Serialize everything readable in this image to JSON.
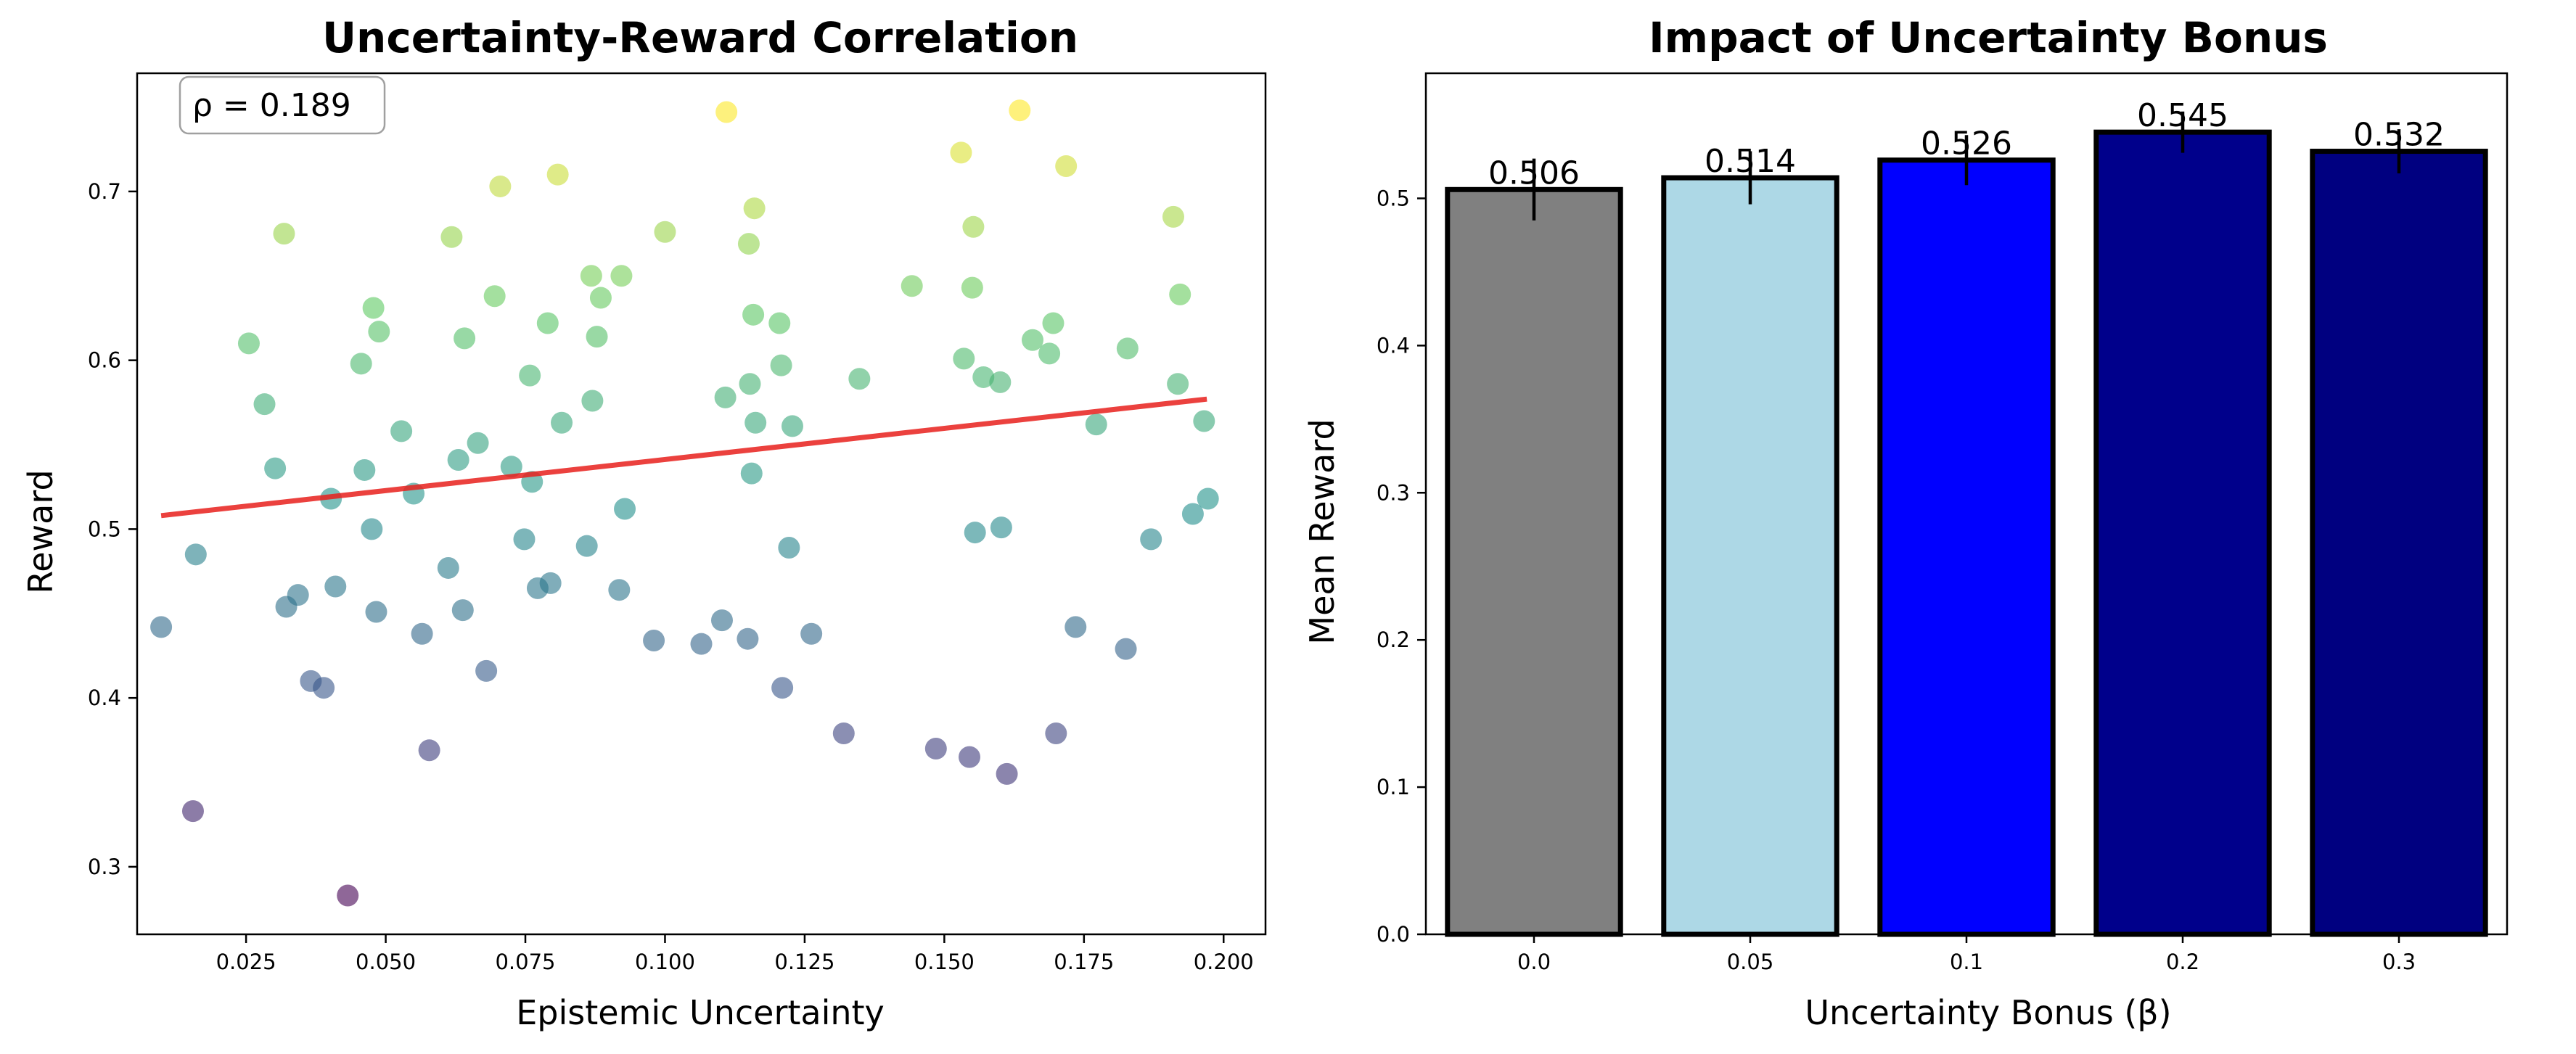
{
  "chart_data": [
    {
      "type": "scatter",
      "title": "Uncertainty-Reward Correlation",
      "xlabel": "Epistemic Uncertainty",
      "ylabel": "Reward",
      "xlim": [
        0.0055,
        0.2075
      ],
      "ylim": [
        0.26,
        0.77
      ],
      "xticks": [
        0.025,
        0.05,
        0.075,
        0.1,
        0.125,
        0.15,
        0.175,
        0.2
      ],
      "xtick_labels": [
        "0.025",
        "0.050",
        "0.075",
        "0.100",
        "0.125",
        "0.150",
        "0.175",
        "0.200"
      ],
      "yticks": [
        0.3,
        0.4,
        0.5,
        0.6,
        0.7
      ],
      "ytick_labels": [
        "0.3",
        "0.4",
        "0.5",
        "0.6",
        "0.7"
      ],
      "grid": false,
      "colormap": "viridis",
      "color_by": "y",
      "point_alpha": 0.6,
      "trend_line": {
        "x": [
          0.0098,
          0.197
        ],
        "y": [
          0.508,
          0.577
        ],
        "color": "#e8201c"
      },
      "annotation": "ρ = 0.189",
      "annotation_position": "top-left",
      "points": [
        [
          0.0098,
          0.442
        ],
        [
          0.0155,
          0.333
        ],
        [
          0.016,
          0.485
        ],
        [
          0.0255,
          0.61
        ],
        [
          0.0283,
          0.574
        ],
        [
          0.0302,
          0.536
        ],
        [
          0.0318,
          0.675
        ],
        [
          0.0322,
          0.454
        ],
        [
          0.0343,
          0.461
        ],
        [
          0.0366,
          0.41
        ],
        [
          0.0389,
          0.406
        ],
        [
          0.0402,
          0.518
        ],
        [
          0.041,
          0.466
        ],
        [
          0.0432,
          0.283
        ],
        [
          0.0456,
          0.598
        ],
        [
          0.0462,
          0.535
        ],
        [
          0.0475,
          0.5
        ],
        [
          0.0478,
          0.631
        ],
        [
          0.0483,
          0.451
        ],
        [
          0.0488,
          0.617
        ],
        [
          0.0528,
          0.558
        ],
        [
          0.055,
          0.521
        ],
        [
          0.0565,
          0.438
        ],
        [
          0.0578,
          0.369
        ],
        [
          0.0612,
          0.477
        ],
        [
          0.0618,
          0.673
        ],
        [
          0.063,
          0.541
        ],
        [
          0.0638,
          0.452
        ],
        [
          0.0641,
          0.613
        ],
        [
          0.0665,
          0.551
        ],
        [
          0.068,
          0.416
        ],
        [
          0.0695,
          0.638
        ],
        [
          0.0705,
          0.703
        ],
        [
          0.0725,
          0.537
        ],
        [
          0.0748,
          0.494
        ],
        [
          0.0758,
          0.591
        ],
        [
          0.0762,
          0.528
        ],
        [
          0.0772,
          0.465
        ],
        [
          0.079,
          0.622
        ],
        [
          0.0795,
          0.468
        ],
        [
          0.0808,
          0.71
        ],
        [
          0.0815,
          0.563
        ],
        [
          0.086,
          0.49
        ],
        [
          0.0868,
          0.65
        ],
        [
          0.087,
          0.576
        ],
        [
          0.0878,
          0.614
        ],
        [
          0.0885,
          0.637
        ],
        [
          0.0918,
          0.464
        ],
        [
          0.0922,
          0.65
        ],
        [
          0.0928,
          0.512
        ],
        [
          0.098,
          0.434
        ],
        [
          0.1,
          0.676
        ],
        [
          0.1065,
          0.432
        ],
        [
          0.1102,
          0.446
        ],
        [
          0.1108,
          0.578
        ],
        [
          0.111,
          0.747
        ],
        [
          0.1148,
          0.435
        ],
        [
          0.115,
          0.669
        ],
        [
          0.1152,
          0.586
        ],
        [
          0.1155,
          0.533
        ],
        [
          0.1158,
          0.627
        ],
        [
          0.116,
          0.69
        ],
        [
          0.1162,
          0.563
        ],
        [
          0.1205,
          0.622
        ],
        [
          0.1208,
          0.597
        ],
        [
          0.121,
          0.406
        ],
        [
          0.1222,
          0.489
        ],
        [
          0.1228,
          0.561
        ],
        [
          0.1262,
          0.438
        ],
        [
          0.132,
          0.379
        ],
        [
          0.1348,
          0.589
        ],
        [
          0.1442,
          0.644
        ],
        [
          0.1485,
          0.37
        ],
        [
          0.153,
          0.723
        ],
        [
          0.1535,
          0.601
        ],
        [
          0.1545,
          0.365
        ],
        [
          0.155,
          0.643
        ],
        [
          0.1552,
          0.679
        ],
        [
          0.1555,
          0.498
        ],
        [
          0.157,
          0.59
        ],
        [
          0.16,
          0.587
        ],
        [
          0.1602,
          0.501
        ],
        [
          0.1612,
          0.355
        ],
        [
          0.1635,
          0.748
        ],
        [
          0.1658,
          0.612
        ],
        [
          0.1688,
          0.604
        ],
        [
          0.1695,
          0.622
        ],
        [
          0.17,
          0.379
        ],
        [
          0.1718,
          0.715
        ],
        [
          0.1735,
          0.442
        ],
        [
          0.1772,
          0.562
        ],
        [
          0.1825,
          0.429
        ],
        [
          0.1828,
          0.607
        ],
        [
          0.187,
          0.494
        ],
        [
          0.191,
          0.685
        ],
        [
          0.1918,
          0.586
        ],
        [
          0.1922,
          0.639
        ],
        [
          0.1945,
          0.509
        ],
        [
          0.1965,
          0.564
        ],
        [
          0.1972,
          0.518
        ]
      ]
    },
    {
      "type": "bar",
      "title": "Impact of Uncertainty Bonus",
      "xlabel": "Uncertainty Bonus (β)",
      "ylabel": "Mean Reward",
      "categories": [
        "0.0",
        "0.05",
        "0.1",
        "0.2",
        "0.3"
      ],
      "values": [
        0.506,
        0.514,
        0.526,
        0.545,
        0.532
      ],
      "value_labels": [
        "0.506",
        "0.514",
        "0.526",
        "0.545",
        "0.532"
      ],
      "errors": [
        0.021,
        0.018,
        0.017,
        0.014,
        0.015
      ],
      "colors": [
        "#808080",
        "#add8e6",
        "#0000ff",
        "#00008b",
        "#000080"
      ],
      "ylim": [
        0,
        0.585
      ],
      "yticks": [
        0.0,
        0.1,
        0.2,
        0.3,
        0.4,
        0.5
      ],
      "ytick_labels": [
        "0.0",
        "0.1",
        "0.2",
        "0.3",
        "0.4",
        "0.5"
      ],
      "grid": false
    }
  ]
}
